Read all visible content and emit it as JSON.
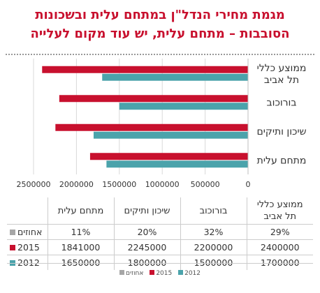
{
  "title": {
    "line1": "מגמת מחירי הנדל\"ן במתחם עלית ובשכונות",
    "line2": "הסובבות – מתחם עלית, יש עוד מקום לעלייה"
  },
  "chart_data": {
    "type": "bar",
    "orientation": "horizontal",
    "x_direction": "reversed",
    "categories": [
      {
        "line1": "ממוצע כללי",
        "line2": "תל אביב"
      },
      {
        "line1": "בורוכוב",
        "line2": ""
      },
      {
        "line1": "שיכון ותיקים",
        "line2": ""
      },
      {
        "line1": "מתחם עלית",
        "line2": ""
      }
    ],
    "series": [
      {
        "name": "2015",
        "color": "#c8102e",
        "values": [
          2400000,
          2200000,
          2245000,
          1841000
        ]
      },
      {
        "name": "2012",
        "color": "#4ba3ab",
        "values": [
          1700000,
          1500000,
          1800000,
          1650000
        ]
      }
    ],
    "xlim": [
      0,
      2500000
    ],
    "xticks": [
      {
        "value": 2500000,
        "label": "2500000"
      },
      {
        "value": 2000000,
        "label": "2000000"
      },
      {
        "value": 1500000,
        "label": "1500000"
      },
      {
        "value": 1000000,
        "label": "1000000"
      },
      {
        "value": 500000,
        "label": "500000"
      },
      {
        "value": 0,
        "label": "0"
      }
    ],
    "grid": true,
    "legend_position": "bottom"
  },
  "table": {
    "columns": [
      {
        "line1": "מתחם עלית",
        "line2": ""
      },
      {
        "line1": "שיכון ותיקים",
        "line2": ""
      },
      {
        "line1": "בורוכוב",
        "line2": ""
      },
      {
        "line1": "ממוצע כללי",
        "line2": "תל אביב"
      }
    ],
    "rows": [
      {
        "label": "אחוזים",
        "color": "#a6a6a6",
        "cells": [
          "11%",
          "20%",
          "32%",
          "29%"
        ]
      },
      {
        "label": "2015",
        "color": "#c8102e",
        "cells": [
          "1841000",
          "2245000",
          "2200000",
          "2400000"
        ]
      },
      {
        "label": "2012",
        "color": "#4ba3ab",
        "cells": [
          "1650000",
          "1800000",
          "1500000",
          "1700000"
        ]
      }
    ]
  },
  "legend": [
    {
      "label": "אחוזים",
      "color": "#a6a6a6"
    },
    {
      "label": "2015",
      "color": "#c8102e"
    },
    {
      "label": "2012",
      "color": "#4ba3ab"
    }
  ]
}
